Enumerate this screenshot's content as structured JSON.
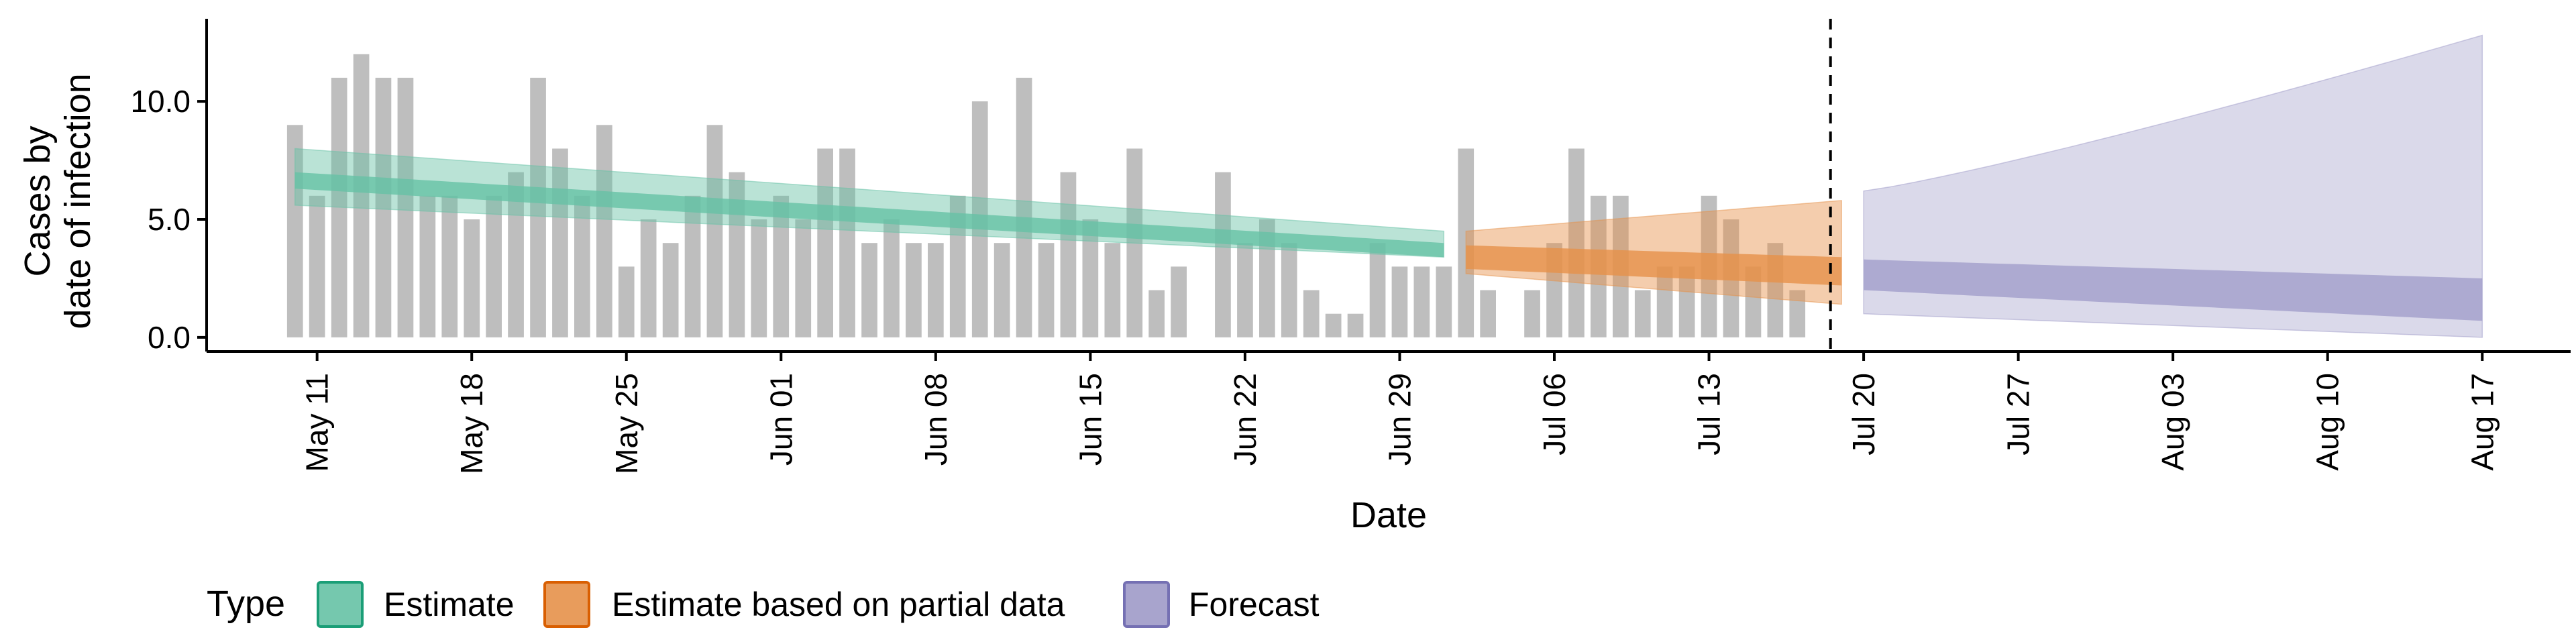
{
  "chart_data": {
    "type": "bar+area",
    "title": "",
    "xlabel": "Date",
    "ylabel_lines": [
      "Cases by",
      "date of infection"
    ],
    "ylim": [
      -0.6,
      13.5
    ],
    "yticks": [
      0,
      5,
      10
    ],
    "ytick_labels": [
      "0.0",
      "5.0",
      "10.0"
    ],
    "xlim": [
      "2020-05-06",
      "2020-08-21"
    ],
    "xticks": [
      "2020-05-11",
      "2020-05-18",
      "2020-05-25",
      "2020-06-01",
      "2020-06-08",
      "2020-06-15",
      "2020-06-22",
      "2020-06-29",
      "2020-07-06",
      "2020-07-13",
      "2020-07-20",
      "2020-07-27",
      "2020-08-03",
      "2020-08-10",
      "2020-08-17"
    ],
    "xtick_labels": [
      "May 11",
      "May 18",
      "May 25",
      "Jun 01",
      "Jun 08",
      "Jun 15",
      "Jun 22",
      "Jun 29",
      "Jul 06",
      "Jul 13",
      "Jul 20",
      "Jul 27",
      "Aug 03",
      "Aug 10",
      "Aug 17"
    ],
    "forecast_start": "2020-07-19",
    "bars": {
      "start_date": "2020-05-10",
      "color": "#bebebe",
      "values": [
        9,
        6,
        11,
        12,
        11,
        11,
        6,
        6,
        5,
        6,
        7,
        11,
        8,
        6,
        9,
        3,
        5,
        4,
        6,
        9,
        7,
        5,
        6,
        5,
        8,
        8,
        4,
        5,
        4,
        4,
        6,
        10,
        4,
        11,
        4,
        7,
        5,
        4,
        8,
        2,
        3,
        0,
        7,
        4,
        5,
        4,
        2,
        1,
        1,
        4,
        3,
        3,
        3,
        8,
        2,
        0,
        2,
        4,
        8,
        6,
        6,
        2,
        3,
        3,
        6,
        5,
        3,
        4,
        2
      ]
    },
    "series": [
      {
        "name": "Estimate",
        "color": "#1b9e77",
        "fill": "#66c2a5",
        "x_start": "2020-05-10",
        "x_end": "2020-07-01",
        "outer_lo": [
          5.6,
          3.4
        ],
        "outer_hi": [
          8.0,
          4.5
        ],
        "inner_lo": [
          6.3,
          3.4
        ],
        "inner_hi": [
          7.0,
          4.0
        ]
      },
      {
        "name": "Estimate based on partial data",
        "color": "#d95f02",
        "fill": "#e6914a",
        "x_start": "2020-07-02",
        "x_end": "2020-07-19",
        "outer_lo": [
          2.7,
          1.4
        ],
        "outer_hi": [
          4.5,
          5.8
        ],
        "inner_lo": [
          2.9,
          2.2
        ],
        "inner_hi": [
          3.9,
          3.4
        ]
      },
      {
        "name": "Forecast",
        "color": "#7570b3",
        "fill": "#9e9ac8",
        "x_start": "2020-07-20",
        "x_end": "2020-08-17",
        "outer_lo": [
          1.0,
          0.0
        ],
        "outer_hi": [
          6.2,
          12.8
        ],
        "inner_lo": [
          2.0,
          0.7
        ],
        "inner_hi": [
          3.3,
          2.5
        ]
      }
    ],
    "legend": {
      "title": "Type",
      "placement": "bottom",
      "entries": [
        "Estimate",
        "Estimate based on partial data",
        "Forecast"
      ]
    },
    "grid": false
  }
}
